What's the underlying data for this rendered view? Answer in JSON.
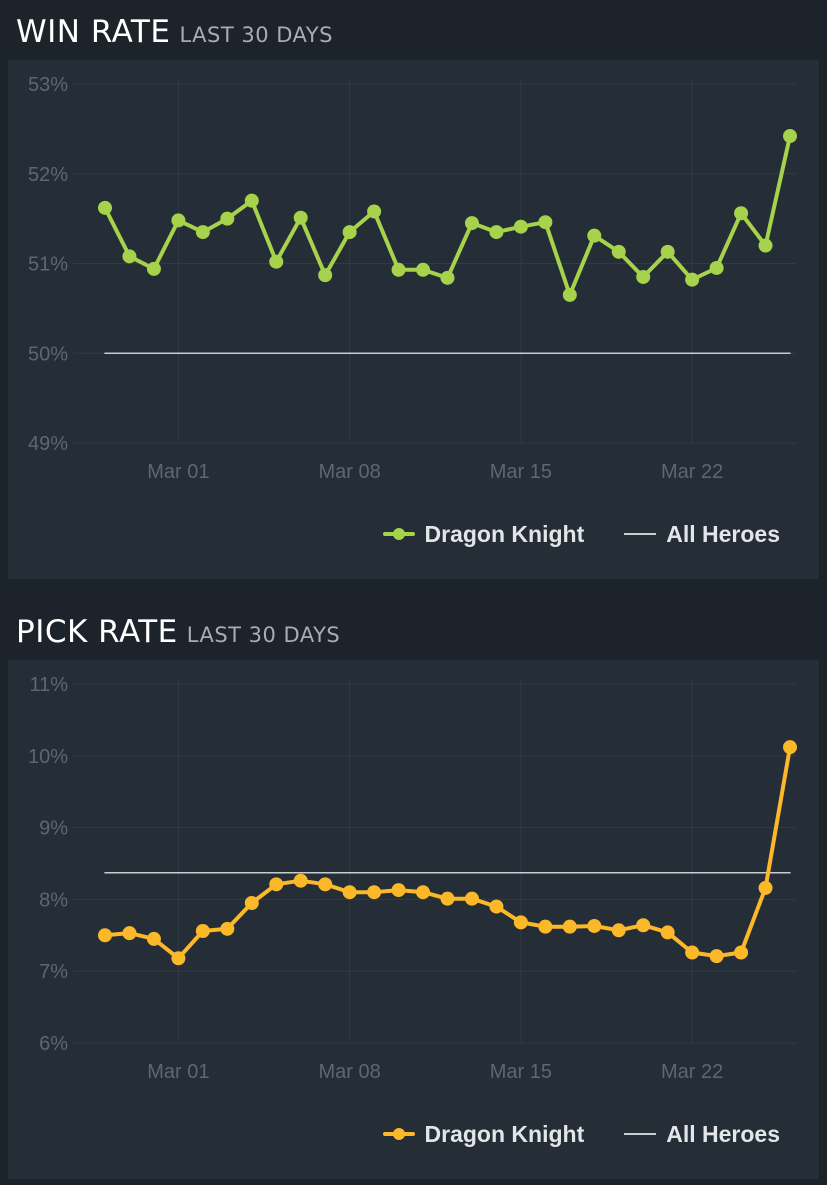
{
  "colors": {
    "background": "#1d232b",
    "panel": "#252d37",
    "grid": "#313a45",
    "win_series": "#a6d24c",
    "pick_series": "#fbb829",
    "baseline": "#c8ccd0"
  },
  "win_section": {
    "title": "WIN RATE",
    "subtitle": "LAST 30 DAYS"
  },
  "pick_section": {
    "title": "PICK RATE",
    "subtitle": "LAST 30 DAYS"
  },
  "chart_data": [
    {
      "type": "line",
      "title": "WIN RATE",
      "subtitle": "LAST 30 DAYS",
      "x_ticks": [
        "Mar 01",
        "Mar 08",
        "Mar 15",
        "Mar 22"
      ],
      "x_tick_index": [
        3,
        10,
        17,
        24
      ],
      "y_ticks": [
        "53%",
        "52%",
        "51%",
        "50%",
        "49%"
      ],
      "ylim": [
        49,
        53
      ],
      "grid": true,
      "legend_position": "bottom-right",
      "series": [
        {
          "name": "Dragon Knight",
          "color": "#a6d24c",
          "markers": true,
          "values": [
            51.62,
            51.08,
            50.94,
            51.48,
            51.35,
            51.5,
            51.7,
            51.02,
            51.51,
            50.87,
            51.35,
            51.58,
            50.93,
            50.93,
            50.84,
            51.45,
            51.35,
            51.41,
            51.46,
            50.65,
            51.31,
            51.13,
            50.85,
            51.13,
            50.82,
            50.95,
            51.56,
            51.2,
            52.42
          ]
        },
        {
          "name": "All Heroes",
          "color": "#c8ccd0",
          "markers": false,
          "values": [
            50.0,
            50.0,
            50.0,
            50.0,
            50.0,
            50.0,
            50.0,
            50.0,
            50.0,
            50.0,
            50.0,
            50.0,
            50.0,
            50.0,
            50.0,
            50.0,
            50.0,
            50.0,
            50.0,
            50.0,
            50.0,
            50.0,
            50.0,
            50.0,
            50.0,
            50.0,
            50.0,
            50.0,
            50.0
          ]
        }
      ]
    },
    {
      "type": "line",
      "title": "PICK RATE",
      "subtitle": "LAST 30 DAYS",
      "x_ticks": [
        "Mar 01",
        "Mar 08",
        "Mar 15",
        "Mar 22"
      ],
      "x_tick_index": [
        3,
        10,
        17,
        24
      ],
      "y_ticks": [
        "11%",
        "10%",
        "9%",
        "8%",
        "7%",
        "6%"
      ],
      "ylim": [
        6,
        11
      ],
      "grid": true,
      "legend_position": "bottom-right",
      "series": [
        {
          "name": "Dragon Knight",
          "color": "#fbb829",
          "markers": true,
          "values": [
            7.5,
            7.53,
            7.45,
            7.18,
            7.56,
            7.59,
            7.95,
            8.21,
            8.26,
            8.21,
            8.1,
            8.1,
            8.13,
            8.1,
            8.01,
            8.01,
            7.9,
            7.68,
            7.62,
            7.62,
            7.63,
            7.57,
            7.64,
            7.54,
            7.26,
            7.21,
            7.26,
            8.16,
            10.12
          ]
        },
        {
          "name": "All Heroes",
          "color": "#c8ccd0",
          "markers": false,
          "values": [
            8.37,
            8.37,
            8.37,
            8.37,
            8.37,
            8.37,
            8.37,
            8.37,
            8.37,
            8.37,
            8.37,
            8.37,
            8.37,
            8.37,
            8.37,
            8.37,
            8.37,
            8.37,
            8.37,
            8.37,
            8.37,
            8.37,
            8.37,
            8.37,
            8.37,
            8.37,
            8.37,
            8.37,
            8.37
          ]
        }
      ]
    }
  ]
}
